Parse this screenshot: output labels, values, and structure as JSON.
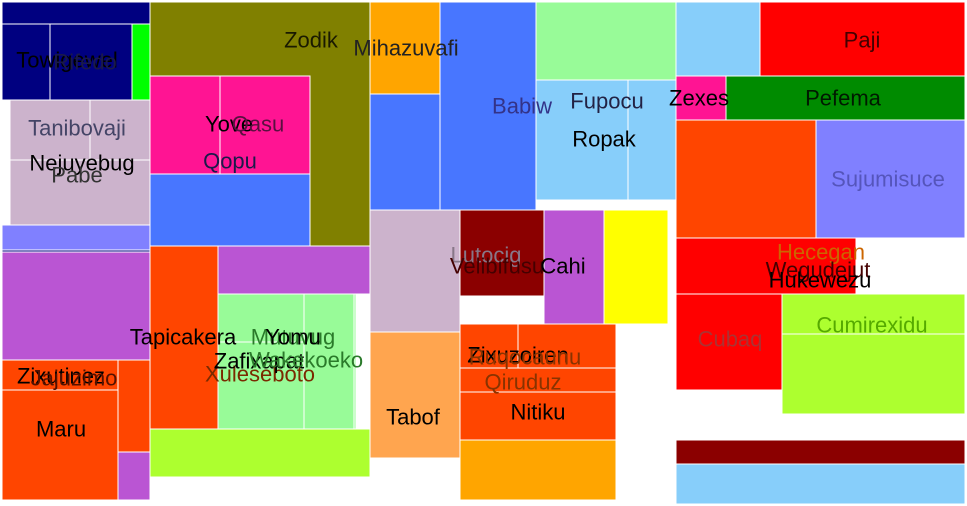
{
  "chart_data": {
    "type": "treemap",
    "title": "",
    "cells": [
      {
        "label": "",
        "color": "#000080"
      },
      {
        "label": "Towigewel",
        "color": "#000080"
      },
      {
        "label": "Rifedo",
        "color": "#000080"
      },
      {
        "label": "",
        "color": "#00ff00"
      },
      {
        "label": "Tanibovaji",
        "color": "#ccb3cc"
      },
      {
        "label": "Nejuyebug",
        "color": "#ccb3cc"
      },
      {
        "label": "Pabe",
        "color": "#ccb3cc"
      },
      {
        "label": "",
        "color": "#8080ff"
      },
      {
        "label": "",
        "color": "#000080"
      },
      {
        "label": "Zodik",
        "color": "#808000"
      },
      {
        "label": "Yove",
        "color": "#ff1493"
      },
      {
        "label": "Qasu",
        "color": "#ff1493"
      },
      {
        "label": "Qopu",
        "color": "#4876ff"
      },
      {
        "label": "Mihazuvafi",
        "color": "#ffa500"
      },
      {
        "label": "",
        "color": "#4876ff"
      },
      {
        "label": "Babiw",
        "color": "#4876ff"
      },
      {
        "label": "",
        "color": "#98fb98"
      },
      {
        "label": "Fupocu",
        "color": "#87cefa"
      },
      {
        "label": "Ropak",
        "color": "#87cefa"
      },
      {
        "label": "",
        "color": "#87cefa"
      },
      {
        "label": "Paji",
        "color": "#ff0000"
      },
      {
        "label": "Zexes",
        "color": "#ff1493"
      },
      {
        "label": "Pefema",
        "color": "#008b00"
      },
      {
        "label": "",
        "color": "#ff4500"
      },
      {
        "label": "Sujumisuce",
        "color": "#8080ff"
      },
      {
        "label": "",
        "color": "#ba55d3"
      },
      {
        "label": "Zixutinez",
        "color": "#ff4500"
      },
      {
        "label": "Jajuzimo",
        "color": "#ff4500"
      },
      {
        "label": "Maru",
        "color": "#ff4500"
      },
      {
        "label": "Tapicakera",
        "color": "#ff4500"
      },
      {
        "label": "Xuleseboto",
        "color": "#ff4500"
      },
      {
        "label": "",
        "color": "#ba55d3"
      },
      {
        "label": "Mutuvug",
        "color": "#98fb98"
      },
      {
        "label": "Yomu",
        "color": "#98fb98"
      },
      {
        "label": "Zafixapat",
        "color": "#98fb98"
      },
      {
        "label": "Wakekoeko",
        "color": "#98fb98"
      },
      {
        "label": "",
        "color": "#adff2f"
      },
      {
        "label": "Lutocig",
        "color": "#ccb3cc"
      },
      {
        "label": "Velibifusu",
        "color": "#8b0000"
      },
      {
        "label": "Cahi",
        "color": "#ba55d3"
      },
      {
        "label": "",
        "color": "#ffff00"
      },
      {
        "label": "Tabof",
        "color": "#ffa54f"
      },
      {
        "label": "Zixuzoiren",
        "color": "#ff4500"
      },
      {
        "label": "Ruqocaunu",
        "color": "#ff4500"
      },
      {
        "label": "Qiruduz",
        "color": "#ff4500"
      },
      {
        "label": "Nitiku",
        "color": "#ff4500"
      },
      {
        "label": "",
        "color": "#ffa500"
      },
      {
        "label": "Hecegan",
        "color": "#ff0000"
      },
      {
        "label": "Wegudejut",
        "color": "#ff0000"
      },
      {
        "label": "Hukewezu",
        "color": "#adff2f"
      },
      {
        "label": "Cubaq",
        "color": "#ff0000"
      },
      {
        "label": "Cumirexidu",
        "color": "#adff2f"
      },
      {
        "label": "",
        "color": "#8b0000"
      },
      {
        "label": "",
        "color": "#87cefa"
      }
    ]
  }
}
